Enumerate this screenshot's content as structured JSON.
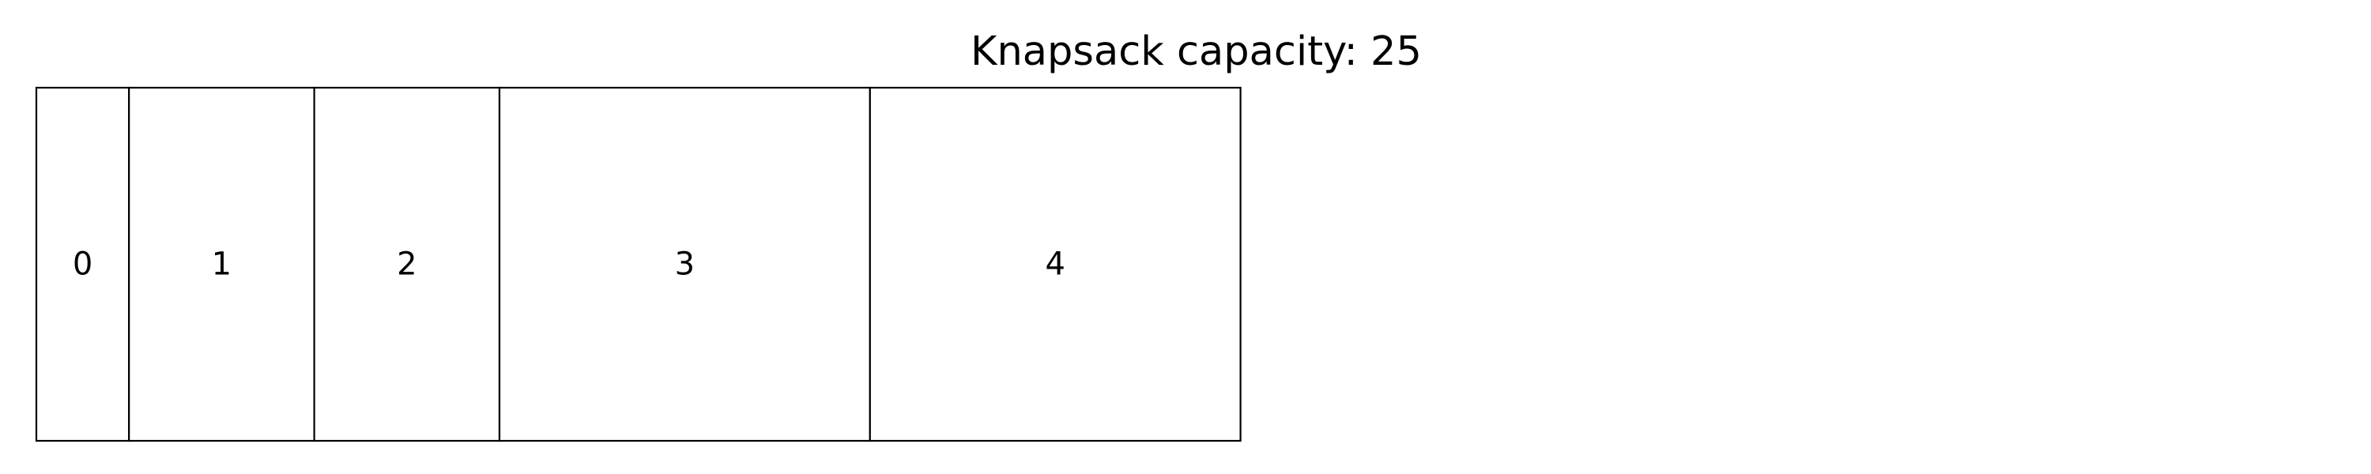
{
  "title": "Knapsack capacity: 25",
  "capacity": 25,
  "items": [
    {
      "label": "0",
      "width": 2
    },
    {
      "label": "1",
      "width": 4
    },
    {
      "label": "2",
      "width": 4
    },
    {
      "label": "3",
      "width": 8
    },
    {
      "label": "4",
      "width": 8
    }
  ],
  "colors": {
    "stroke": "#000000",
    "fill": "#ffffff"
  }
}
